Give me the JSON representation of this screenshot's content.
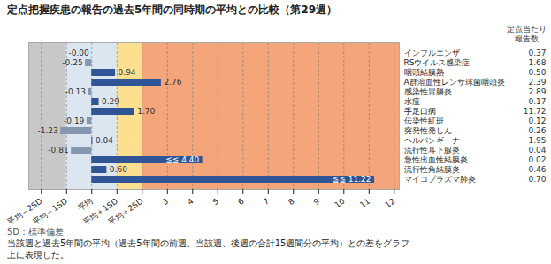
{
  "chart_data": {
    "type": "bar",
    "orientation": "horizontal",
    "title": "定点把握疾患の報告の過去5年間の同時期の平均との比較（第29週）",
    "categories": [
      "インフルエンザ",
      "RSウイルス感染症",
      "咽頭結膜熱",
      "A群溶血性レンサ球菌咽頭炎",
      "感染性胃腸炎",
      "水痘",
      "手足口病",
      "伝染性紅斑",
      "突発性発しん",
      "ヘルパンギーナ",
      "流行性耳下腺炎",
      "急性出血性結膜炎",
      "流行性角結膜炎",
      "マイコプラズマ肺炎"
    ],
    "values": [
      -0.0,
      -0.25,
      0.94,
      2.76,
      -0.13,
      0.29,
      1.7,
      -0.19,
      -1.23,
      0.04,
      -0.81,
      4.4,
      0.6,
      11.22
    ],
    "value_labels": [
      "-0.00",
      "-0.25",
      "0.94",
      "2.76",
      "-0.13",
      "0.29",
      "1.70",
      "-0.19",
      "-1.23",
      "0.04",
      "-0.81",
      "≦≦ 4.40",
      "0.60",
      "≦≦ 11.22"
    ],
    "data_labels": true,
    "colors": [
      "#2F5597",
      "#8496b0",
      "#2F5597",
      "#2F5597",
      "#8496b0",
      "#2F5597",
      "#2F5597",
      "#8496b0",
      "#8496b0",
      "#2F5597",
      "#8496b0",
      "#2F5597",
      "#2F5597",
      "#2F5597"
    ],
    "xlim": [
      -2.5,
      12.2
    ],
    "xticks": [
      {
        "value": -2,
        "label": "平均－2SD"
      },
      {
        "value": -1,
        "label": "平均－1SD"
      },
      {
        "value": 0,
        "label": "平均"
      },
      {
        "value": 1,
        "label": "平均＋1SD"
      },
      {
        "value": 2,
        "label": "平均＋2SD"
      },
      3,
      4,
      5,
      6,
      7,
      8,
      9,
      10,
      11,
      12
    ],
    "grid": true,
    "zones": [
      {
        "to": -1,
        "color": "#c8c8c8"
      },
      {
        "from": -1,
        "to": 1,
        "color": "#dce6f0"
      },
      {
        "from": 1,
        "to": 2,
        "color": "#fce090"
      },
      {
        "from": 2,
        "color": "#f4a57a"
      }
    ],
    "report_counts": [
      0.37,
      1.68,
      0.5,
      2.39,
      2.89,
      0.17,
      11.72,
      0.12,
      0.26,
      1.95,
      0.04,
      0.02,
      0.46,
      0.7
    ],
    "count_header": [
      "定点当たり",
      "報告数"
    ],
    "sd_note": "SD：標準偏差",
    "notes": [
      "当該週と過去5年間の平均（過去5年間の前週、当該週、後週の合計15週間分の平均）との差をグラフ",
      "上に表現した。"
    ]
  }
}
